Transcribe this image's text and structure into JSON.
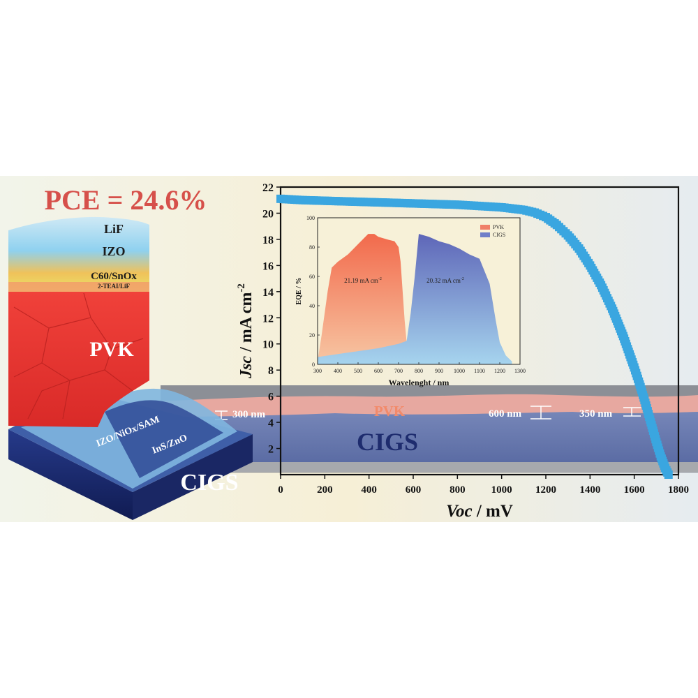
{
  "headline": "PCE = 24.6%",
  "stack_layers": {
    "lif": "LiF",
    "izo": "IZO",
    "c60": "C60/SnOx",
    "teai": "2-TEAI/LiF",
    "pvk": "PVK",
    "izo_nio": "IZO/NiOx/SAM",
    "ins": "InS/ZnO",
    "cigs": "CIGS"
  },
  "sem": {
    "pvk_label": "PVK",
    "cigs_label": "CIGS",
    "thickness_1": "300 nm",
    "thickness_2": "600 nm",
    "thickness_3": "350 nm"
  },
  "colors": {
    "jv_curve": "#3aa6e0",
    "pvk_red": "#e8302c",
    "cigs_navy": "#1c2a6b",
    "headline": "#d6504a",
    "eqe_pvk": "#f08060",
    "eqe_cigs": "#6f7fc8"
  },
  "chart_data": [
    {
      "type": "scatter",
      "xlabel_italic": "Voc",
      "xlabel_unit": " / mV",
      "ylabel_italic": "Jsc",
      "ylabel_unit": " / mA cm",
      "ylabel_sup": "-2",
      "xlim": [
        0,
        1800
      ],
      "ylim": [
        0,
        22
      ],
      "xticks": [
        "0",
        "200",
        "400",
        "600",
        "800",
        "1000",
        "1200",
        "1400",
        "1600",
        "1800"
      ],
      "yticks": [
        "2",
        "4",
        "6",
        "8",
        "10",
        "12",
        "14",
        "16",
        "18",
        "20",
        "22"
      ],
      "series": [
        {
          "x": [
            0,
            100,
            200,
            300,
            400,
            500,
            600,
            700,
            800,
            900,
            1000,
            1100,
            1150,
            1200,
            1250,
            1300,
            1350,
            1400,
            1450,
            1500,
            1550,
            1600,
            1625,
            1650,
            1675,
            1700,
            1720,
            1740,
            1755
          ],
          "y": [
            21.1,
            21.0,
            20.95,
            20.9,
            20.85,
            20.8,
            20.75,
            20.7,
            20.65,
            20.55,
            20.45,
            20.25,
            20.05,
            19.7,
            19.1,
            18.3,
            17.3,
            16.0,
            14.5,
            12.7,
            10.6,
            8.2,
            6.9,
            5.5,
            4.0,
            2.5,
            1.4,
            0.5,
            0.0
          ]
        }
      ]
    },
    {
      "type": "area",
      "xlabel": "Wavelenght / nm",
      "ylabel": "EQE / %",
      "xlim": [
        300,
        1300
      ],
      "ylim": [
        0,
        100
      ],
      "xticks": [
        "300",
        "400",
        "500",
        "600",
        "700",
        "800",
        "900",
        "1000",
        "1100",
        "1200",
        "1300"
      ],
      "yticks": [
        "0",
        "20",
        "40",
        "60",
        "80",
        "100"
      ],
      "series": [
        {
          "name": "PVK",
          "x": [
            300,
            320,
            350,
            370,
            400,
            450,
            500,
            550,
            580,
            600,
            650,
            680,
            700,
            710,
            720,
            730,
            740,
            750,
            760,
            780
          ],
          "y": [
            2,
            20,
            50,
            66,
            70,
            75,
            82,
            89,
            89,
            87,
            85,
            84,
            80,
            70,
            50,
            30,
            15,
            10,
            8,
            6
          ],
          "annotation": "21.19 mA cm",
          "annotation_sup": "-2"
        },
        {
          "name": "CIGS",
          "x": [
            300,
            400,
            500,
            600,
            700,
            740,
            760,
            780,
            800,
            850,
            900,
            950,
            1000,
            1050,
            1100,
            1150,
            1180,
            1200,
            1230,
            1260
          ],
          "y": [
            5,
            7,
            9,
            11,
            14,
            16,
            35,
            60,
            89,
            87,
            84,
            82,
            79,
            75,
            72,
            55,
            30,
            15,
            6,
            2
          ],
          "annotation": "20.32 mA cm",
          "annotation_sup": "-2"
        }
      ]
    }
  ]
}
